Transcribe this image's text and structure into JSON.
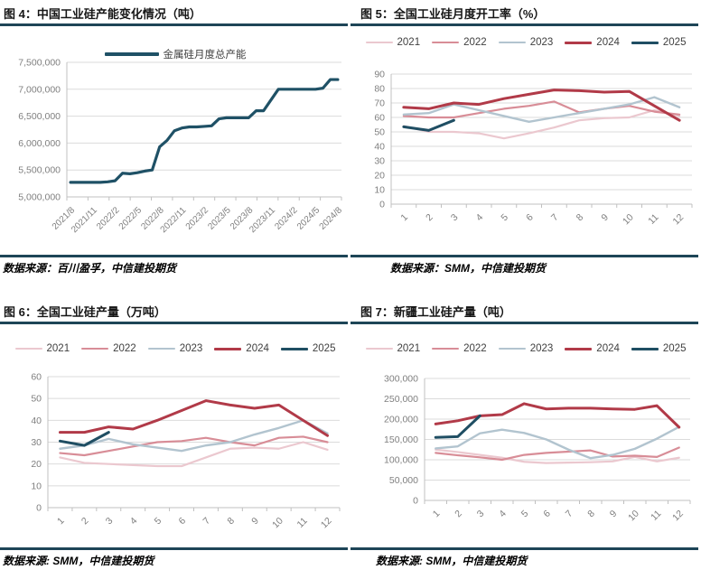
{
  "page": {
    "background": "#ffffff"
  },
  "style_colors": {
    "rule": "#1e4557",
    "gridline": "#dbdbdb",
    "axis_line": "#c0c0c0",
    "axis_text": "#7f7f7f",
    "legend_text": "#3f3f3f",
    "title_text": "#161616"
  },
  "chart_data": [
    {
      "type": "line",
      "title": "图 4：中国工业硅产能变化情况（吨）",
      "source": "数据来源：百川盈孚，中信建投期货",
      "legend_position": "top",
      "grid": true,
      "ylim": [
        5000000,
        7500000
      ],
      "ystep": 500000,
      "x_tick_labels": [
        "2021/8",
        "2021/11",
        "2022/2",
        "2022/5",
        "2022/8",
        "2022/11",
        "2023/2",
        "2023/5",
        "2023/8",
        "2023/11",
        "2024/2",
        "2024/5",
        "2024/8"
      ],
      "x_label_point_step": 3,
      "series": [
        {
          "name": "金属硅月度总产能",
          "color": "#1f5166",
          "line_width": 3.2,
          "values": [
            5270000,
            5270000,
            5270000,
            5270000,
            5270000,
            5280000,
            5300000,
            5440000,
            5430000,
            5450000,
            5480000,
            5500000,
            5930000,
            6050000,
            6230000,
            6280000,
            6300000,
            6300000,
            6310000,
            6320000,
            6450000,
            6470000,
            6470000,
            6470000,
            6470000,
            6600000,
            6600000,
            6800000,
            7000000,
            7000000,
            7000000,
            7000000,
            7000000,
            7000000,
            7020000,
            7180000,
            7180000
          ]
        }
      ]
    },
    {
      "type": "line",
      "title": "图 5：全国工业硅月度开工率（%）",
      "source": "数据来源：SMM，中信建投期货",
      "legend_position": "top",
      "grid": true,
      "ylim": [
        0,
        90
      ],
      "ystep": 10,
      "x_tick_labels": [
        "1",
        "2",
        "3",
        "4",
        "5",
        "6",
        "7",
        "8",
        "9",
        "10",
        "11",
        "12"
      ],
      "series": [
        {
          "name": "2021",
          "color": "#ebc8cf",
          "line_width": 2.2,
          "values": [
            54,
            50,
            50,
            49,
            45.5,
            49,
            53,
            58,
            59.5,
            60,
            65,
            61
          ]
        },
        {
          "name": "2022",
          "color": "#d88d97",
          "line_width": 2.2,
          "values": [
            61,
            60,
            60,
            63,
            66,
            68,
            71,
            63.5,
            66,
            68,
            64,
            62
          ]
        },
        {
          "name": "2023",
          "color": "#b2c4cf",
          "line_width": 2.4,
          "values": [
            62,
            63,
            69,
            65,
            61,
            57,
            60,
            63,
            66,
            69,
            74,
            67
          ]
        },
        {
          "name": "2024",
          "color": "#b13a48",
          "line_width": 3,
          "values": [
            67,
            66,
            70,
            69,
            73,
            76,
            79,
            78.5,
            77.5,
            78,
            68,
            58
          ]
        },
        {
          "name": "2025",
          "color": "#1f4e63",
          "line_width": 3,
          "values": [
            53.5,
            51,
            58
          ]
        }
      ]
    },
    {
      "type": "line",
      "title": "图 6：全国工业硅产量（万吨）",
      "source": "数据来源: SMM，中信建投期货",
      "legend_position": "top",
      "grid": true,
      "ylim": [
        0,
        60
      ],
      "ystep": 10,
      "x_tick_labels": [
        "1",
        "2",
        "3",
        "4",
        "5",
        "6",
        "7",
        "8",
        "9",
        "10",
        "11",
        "12"
      ],
      "series": [
        {
          "name": "2021",
          "color": "#ebc8cf",
          "line_width": 2.2,
          "values": [
            23,
            20.5,
            20,
            19.5,
            19,
            19,
            23,
            27,
            27.5,
            27,
            30,
            26.5
          ]
        },
        {
          "name": "2022",
          "color": "#d88d97",
          "line_width": 2.2,
          "values": [
            25,
            24,
            26,
            28,
            30,
            30.5,
            32,
            30,
            28.5,
            32,
            32.5,
            30
          ]
        },
        {
          "name": "2023",
          "color": "#b2c4cf",
          "line_width": 2.4,
          "values": [
            27,
            28.5,
            31.5,
            29,
            27.5,
            26,
            28.5,
            30,
            33.5,
            36.5,
            40,
            34
          ]
        },
        {
          "name": "2024",
          "color": "#b13a48",
          "line_width": 3,
          "values": [
            34.5,
            34.5,
            37,
            36,
            40,
            44.5,
            49,
            47,
            45.5,
            47,
            40,
            33
          ]
        },
        {
          "name": "2025",
          "color": "#1f4e63",
          "line_width": 3,
          "values": [
            30.5,
            28.5,
            34.5
          ]
        }
      ]
    },
    {
      "type": "line",
      "title": "图 7：新疆工业硅产量（吨）",
      "source": "数据来源: SMM，中信建投期货",
      "legend_position": "top",
      "grid": true,
      "ylim": [
        0,
        300000
      ],
      "ystep": 50000,
      "x_tick_labels": [
        "1",
        "2",
        "3",
        "4",
        "5",
        "6",
        "7",
        "8",
        "9",
        "10",
        "11",
        "12"
      ],
      "series": [
        {
          "name": "2021",
          "color": "#ebc8cf",
          "line_width": 2.2,
          "values": [
            125000,
            119000,
            112000,
            105000,
            95000,
            92000,
            93000,
            94000,
            96000,
            107000,
            96000,
            105000
          ]
        },
        {
          "name": "2022",
          "color": "#d88d97",
          "line_width": 2.2,
          "values": [
            117000,
            111000,
            106000,
            100000,
            112000,
            117000,
            120000,
            123000,
            108000,
            110000,
            107000,
            130000
          ]
        },
        {
          "name": "2023",
          "color": "#b2c4cf",
          "line_width": 2.4,
          "values": [
            128000,
            133000,
            165000,
            174000,
            166000,
            150000,
            125000,
            104000,
            112000,
            127000,
            152000,
            181000
          ]
        },
        {
          "name": "2024",
          "color": "#b13a48",
          "line_width": 3,
          "values": [
            188000,
            196000,
            208000,
            211000,
            238000,
            225000,
            227000,
            227000,
            225000,
            224000,
            233000,
            180000
          ]
        },
        {
          "name": "2025",
          "color": "#1f4e63",
          "line_width": 3,
          "values": [
            155000,
            157000,
            208000
          ]
        }
      ]
    }
  ]
}
